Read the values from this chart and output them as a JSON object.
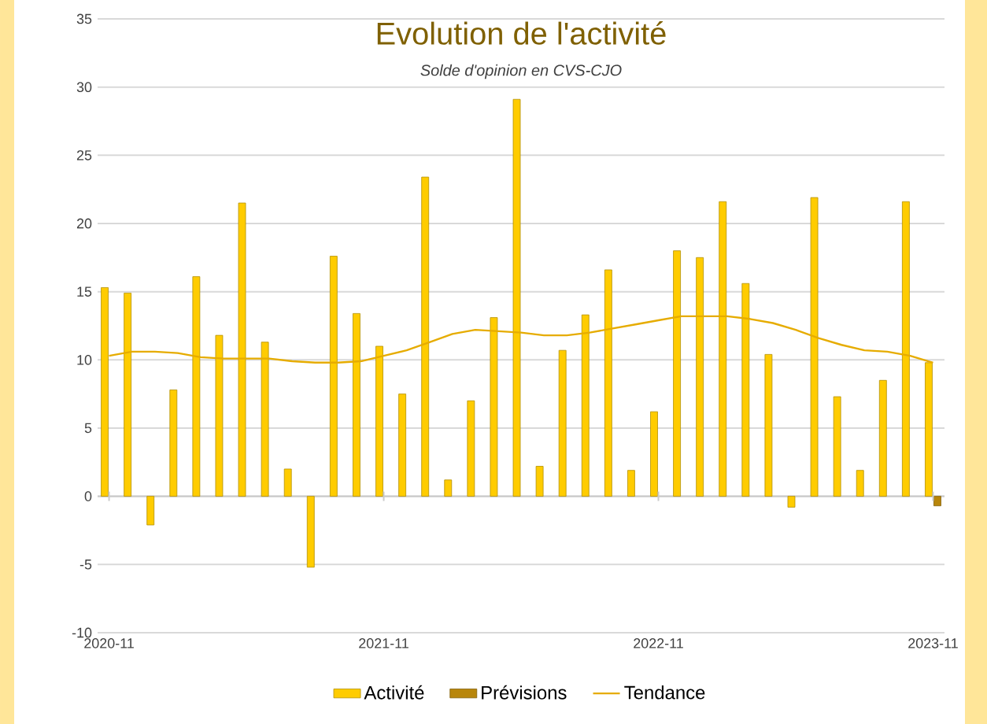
{
  "chart_data": {
    "type": "bar",
    "title": "Evolution de l'activité",
    "subtitle": "Solde d'opinion en CVS-CJO",
    "categories": [
      "2020-11",
      null,
      null,
      null,
      null,
      null,
      null,
      null,
      null,
      null,
      null,
      null,
      "2021-11",
      null,
      null,
      null,
      null,
      null,
      null,
      null,
      null,
      null,
      null,
      null,
      "2022-11",
      null,
      null,
      null,
      null,
      null,
      null,
      null,
      null,
      null,
      null,
      null,
      "2023-11"
    ],
    "series": [
      {
        "name": "Activité",
        "color": "#ffcc00",
        "values": [
          15.3,
          14.9,
          -2.1,
          7.8,
          16.1,
          11.8,
          21.5,
          11.3,
          2.0,
          -5.2,
          17.6,
          13.4,
          11.0,
          7.5,
          23.4,
          1.2,
          7.0,
          13.1,
          29.1,
          2.2,
          10.7,
          13.3,
          16.6,
          1.9,
          6.2,
          18.0,
          17.5,
          21.6,
          15.6,
          10.4,
          -0.8,
          21.9,
          7.3,
          1.9,
          8.5,
          21.6,
          9.8
        ]
      },
      {
        "name": "Prévisions",
        "color": "#b8860b",
        "values": [
          null,
          null,
          null,
          null,
          null,
          null,
          null,
          null,
          null,
          null,
          null,
          null,
          null,
          null,
          null,
          null,
          null,
          null,
          null,
          null,
          null,
          null,
          null,
          null,
          null,
          null,
          null,
          null,
          null,
          null,
          null,
          null,
          null,
          null,
          null,
          null,
          -0.7
        ]
      },
      {
        "name": "Tendance",
        "type": "line",
        "color": "#e6ac00",
        "values": [
          10.3,
          10.6,
          10.6,
          10.5,
          10.2,
          10.1,
          10.1,
          10.1,
          9.9,
          9.8,
          9.8,
          9.9,
          10.3,
          10.7,
          11.3,
          11.9,
          12.2,
          12.1,
          12.0,
          11.8,
          11.8,
          12.0,
          12.3,
          12.6,
          12.9,
          13.2,
          13.2,
          13.2,
          13.0,
          12.7,
          12.2,
          11.6,
          11.1,
          10.7,
          10.6,
          10.3,
          9.8
        ]
      }
    ],
    "ylim": [
      -10,
      35
    ],
    "yticks": [
      -10,
      -5,
      0,
      5,
      10,
      15,
      20,
      25,
      30,
      35
    ],
    "grid": "y",
    "legend": "bottom"
  }
}
